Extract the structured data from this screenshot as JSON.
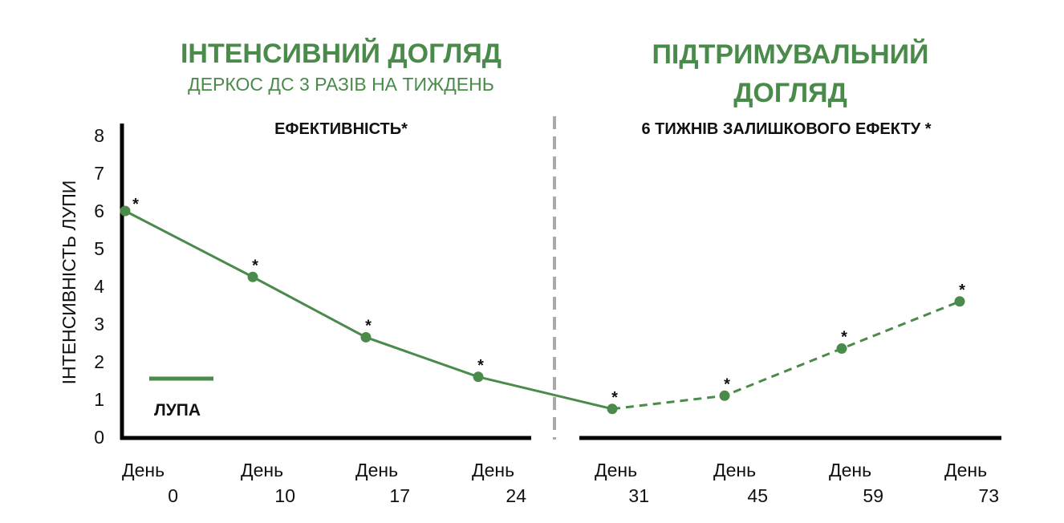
{
  "header": {
    "left_title": "ІНТЕНСИВНИЙ ДОГЛЯД",
    "left_subtitle": "ДЕРКОС ДС 3 РАЗІВ НА ТИЖДЕНЬ",
    "right_title_line1": "ПІДТРИМУВАЛЬНИЙ",
    "right_title_line2": "ДОГЛЯД",
    "left_section": "ЕФЕКТИВНІСТЬ*",
    "right_section": "6 ТИЖНІВ ЗАЛИШКОВОГО ЕФЕКТУ *"
  },
  "colors": {
    "series": "#4a8a4a",
    "axis": "#000000",
    "divider": "#aaaaaa"
  },
  "chart_data": {
    "type": "line",
    "ylabel": "ІНТЕНСИВНІСТЬ ЛУПИ",
    "ylim": [
      0,
      8
    ],
    "yticks": [
      "0",
      "1",
      "2",
      "3",
      "4",
      "5",
      "6",
      "7",
      "8"
    ],
    "categories": [
      {
        "word": "День",
        "num": "0"
      },
      {
        "word": "День",
        "num": "10"
      },
      {
        "word": "День",
        "num": "17"
      },
      {
        "word": "День",
        "num": "24"
      },
      {
        "word": "День",
        "num": "31"
      },
      {
        "word": "День",
        "num": "45"
      },
      {
        "word": "День",
        "num": "59"
      },
      {
        "word": "День",
        "num": "73"
      }
    ],
    "series": [
      {
        "name": "ЛУПА",
        "values": [
          6.0,
          4.25,
          2.65,
          1.6,
          0.75,
          1.1,
          2.35,
          3.6
        ],
        "markers": [
          "*",
          "*",
          "*",
          "*",
          "*",
          "*",
          "*",
          "*"
        ],
        "solid_until_index": 4
      }
    ],
    "grid": false,
    "legend_position": "bottom-left"
  }
}
